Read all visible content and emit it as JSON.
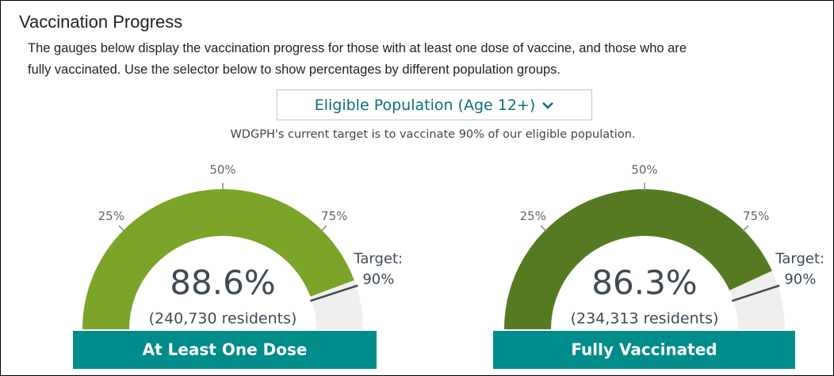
{
  "header": {
    "title": "Vaccination Progress",
    "description": [
      "The gauges below display the vaccination progress for those with at least one dose of vaccine, and those who are",
      "fully vaccinated. Use the selector below to show percentages by different population groups."
    ],
    "selector": "Eligible Population (Age 12+)",
    "note": "WDGPH's current target is to vaccinate 90% of our eligible population."
  },
  "chart_data": [
    {
      "type": "gauge",
      "title": "At Least One Dose",
      "values": [
        88.6
      ],
      "value_labels": [
        "88.6%"
      ],
      "caption": "(240,730 residents)",
      "color": "#7ba428",
      "ylim": [
        0,
        100
      ],
      "yticks": [
        {
          "value": 25,
          "label": "25%"
        },
        {
          "value": 50,
          "label": "50%"
        },
        {
          "value": 75,
          "label": "75%"
        }
      ],
      "target_title": "Target:",
      "target": {
        "value": 90,
        "label": "90%"
      }
    },
    {
      "type": "gauge",
      "title": "Fully Vaccinated",
      "values": [
        86.3
      ],
      "value_labels": [
        "86.3%"
      ],
      "caption": "(234,313 residents)",
      "color": "#567a22",
      "ylim": [
        0,
        100
      ],
      "yticks": [
        {
          "value": 25,
          "label": "25%"
        },
        {
          "value": 50,
          "label": "50%"
        },
        {
          "value": 75,
          "label": "75%"
        }
      ],
      "target_title": "Target:",
      "target": {
        "value": 90,
        "label": "90%"
      }
    }
  ]
}
